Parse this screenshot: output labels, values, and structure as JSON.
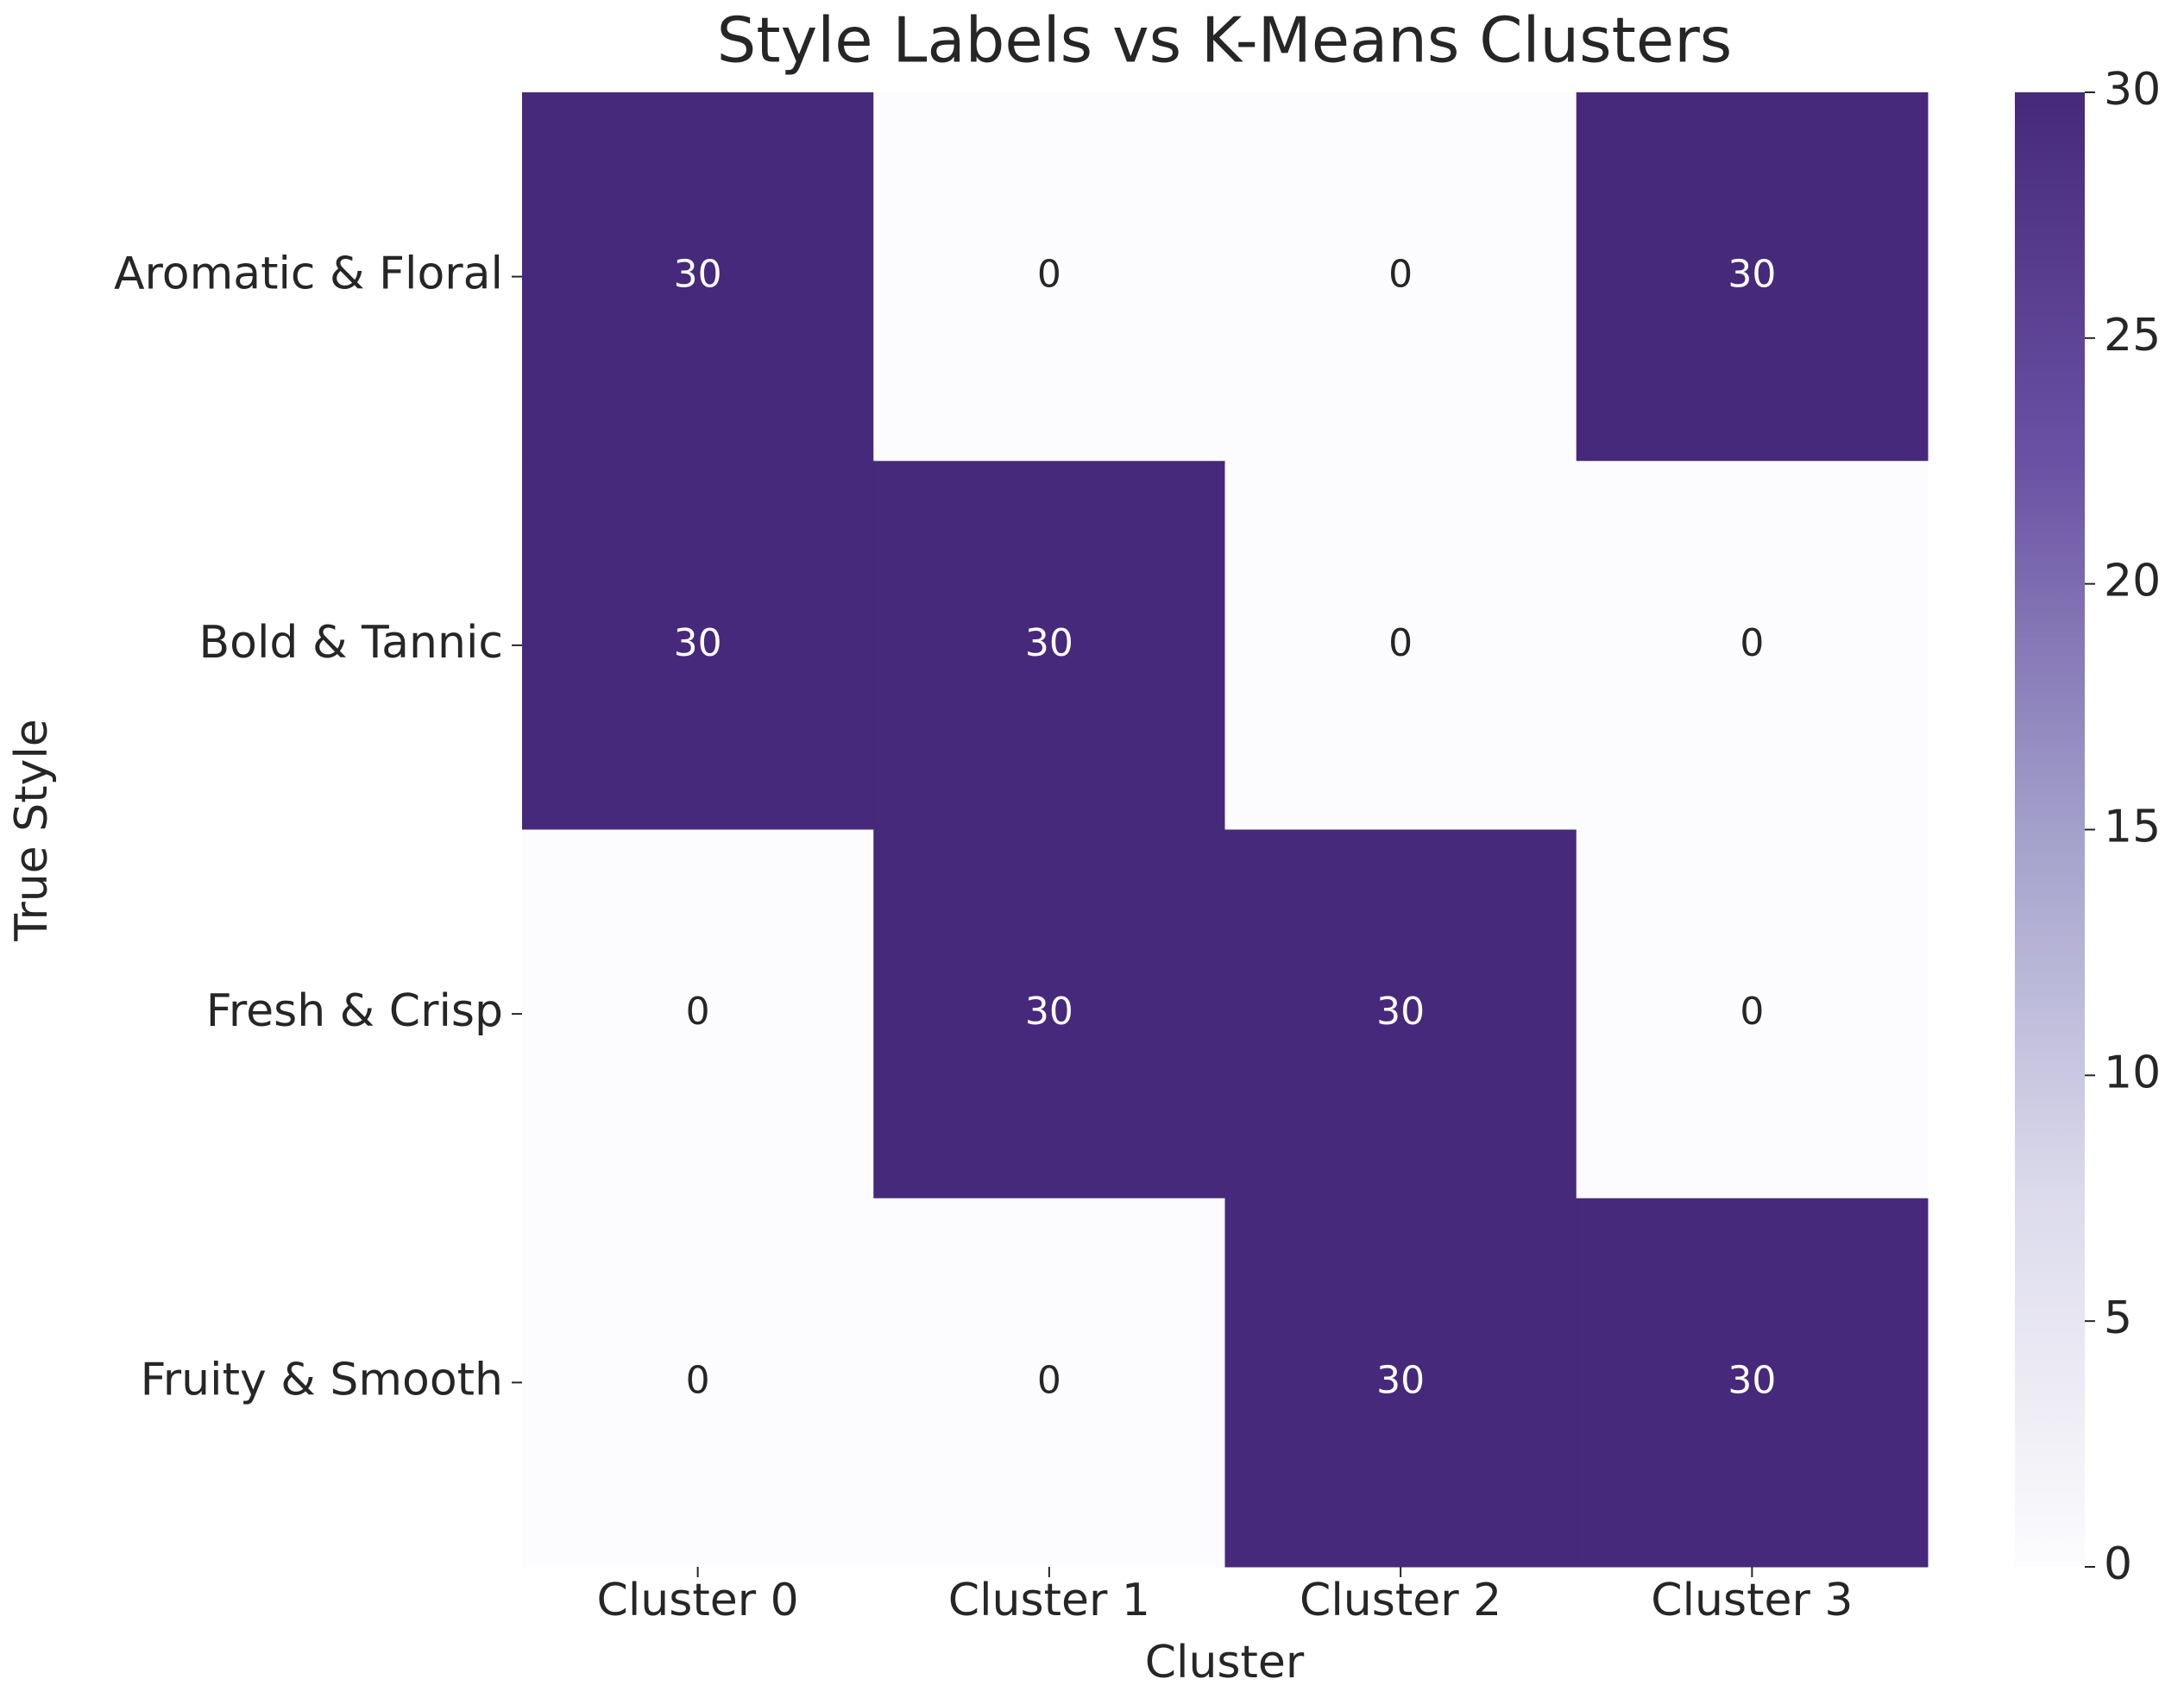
{
  "chart_data": {
    "type": "heatmap",
    "title": "Style Labels vs K-Means Clusters",
    "xlabel": "Cluster",
    "ylabel": "True Style",
    "x_categories": [
      "Cluster 0",
      "Cluster 1",
      "Cluster 2",
      "Cluster 3"
    ],
    "y_categories": [
      "Aromatic & Floral",
      "Bold & Tannic",
      "Fresh & Crisp",
      "Fruity & Smooth"
    ],
    "values": [
      [
        30,
        0,
        0,
        30
      ],
      [
        30,
        30,
        0,
        0
      ],
      [
        0,
        30,
        30,
        0
      ],
      [
        0,
        0,
        30,
        30
      ]
    ],
    "clim": [
      0,
      30
    ],
    "cticks": [
      0,
      5,
      10,
      15,
      20,
      25,
      30
    ],
    "colormap": [
      "#fcfbfd",
      "#dcdbec",
      "#a3a0cb",
      "#6a51a3",
      "#46297a"
    ]
  }
}
